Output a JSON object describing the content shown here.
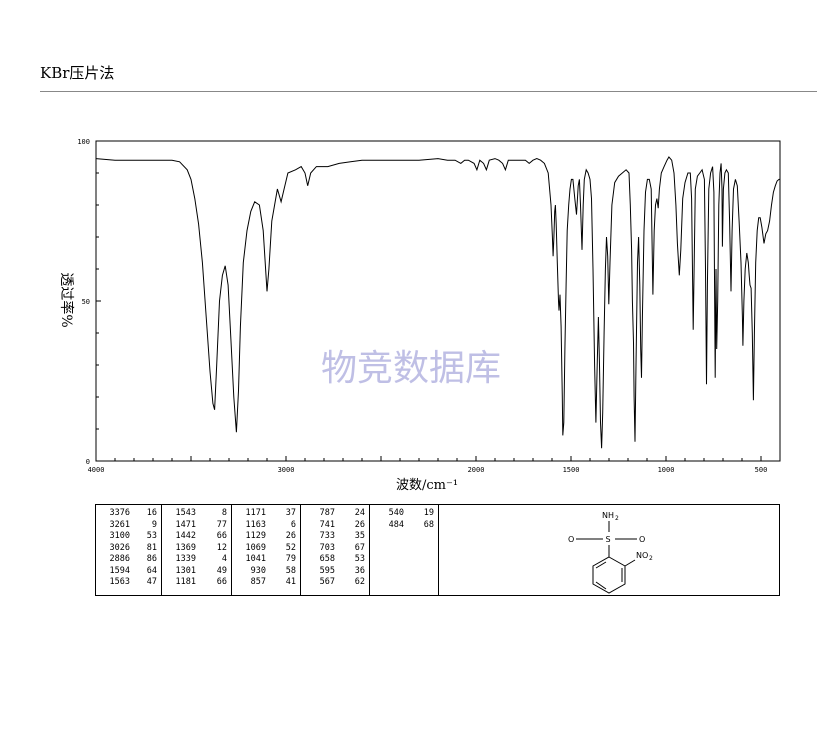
{
  "header": {
    "method": "KBr压片法"
  },
  "watermark": "物竞数据库",
  "chart_data": {
    "type": "line",
    "ylabel": "透过率%",
    "xlabel": "波数/cm⁻¹",
    "xlim": [
      4000,
      400
    ],
    "ylim": [
      0,
      100
    ],
    "x_ticks": [
      "4000",
      "3000",
      "2000",
      "1500",
      "1000",
      "500"
    ],
    "y_ticks": [
      "100",
      "50",
      "0"
    ],
    "series": [
      {
        "points": [
          [
            4000,
            94.5
          ],
          [
            3900,
            94
          ],
          [
            3800,
            94
          ],
          [
            3700,
            94
          ],
          [
            3600,
            94
          ],
          [
            3560,
            93.5
          ],
          [
            3520,
            91
          ],
          [
            3500,
            88
          ],
          [
            3480,
            82
          ],
          [
            3460,
            74
          ],
          [
            3440,
            62
          ],
          [
            3420,
            45
          ],
          [
            3400,
            28
          ],
          [
            3385,
            18
          ],
          [
            3376,
            16
          ],
          [
            3365,
            30
          ],
          [
            3350,
            50
          ],
          [
            3335,
            58
          ],
          [
            3320,
            61
          ],
          [
            3305,
            55
          ],
          [
            3290,
            38
          ],
          [
            3275,
            20
          ],
          [
            3261,
            9
          ],
          [
            3250,
            22
          ],
          [
            3240,
            42
          ],
          [
            3225,
            62
          ],
          [
            3205,
            72
          ],
          [
            3185,
            78
          ],
          [
            3165,
            81
          ],
          [
            3140,
            80
          ],
          [
            3120,
            72
          ],
          [
            3100,
            53
          ],
          [
            3090,
            60
          ],
          [
            3075,
            75
          ],
          [
            3060,
            80
          ],
          [
            3045,
            85
          ],
          [
            3026,
            81
          ],
          [
            3010,
            85
          ],
          [
            2990,
            90
          ],
          [
            2950,
            91
          ],
          [
            2920,
            92
          ],
          [
            2900,
            90
          ],
          [
            2886,
            86
          ],
          [
            2870,
            90
          ],
          [
            2840,
            92
          ],
          [
            2780,
            92
          ],
          [
            2720,
            93
          ],
          [
            2660,
            93.5
          ],
          [
            2600,
            94
          ],
          [
            2540,
            94
          ],
          [
            2480,
            94
          ],
          [
            2400,
            94
          ],
          [
            2300,
            94
          ],
          [
            2200,
            94.5
          ],
          [
            2150,
            94
          ],
          [
            2110,
            94
          ],
          [
            2080,
            93
          ],
          [
            2060,
            94
          ],
          [
            2040,
            94
          ],
          [
            2010,
            93
          ],
          [
            1995,
            91
          ],
          [
            1980,
            94
          ],
          [
            1960,
            93
          ],
          [
            1945,
            91
          ],
          [
            1930,
            94
          ],
          [
            1900,
            94.5
          ],
          [
            1880,
            94
          ],
          [
            1860,
            93
          ],
          [
            1845,
            91
          ],
          [
            1830,
            94
          ],
          [
            1800,
            94
          ],
          [
            1760,
            94
          ],
          [
            1740,
            94
          ],
          [
            1720,
            93
          ],
          [
            1700,
            94
          ],
          [
            1680,
            94.5
          ],
          [
            1660,
            94
          ],
          [
            1640,
            93
          ],
          [
            1620,
            90
          ],
          [
            1605,
            80
          ],
          [
            1598,
            70
          ],
          [
            1594,
            64
          ],
          [
            1590,
            70
          ],
          [
            1586,
            78
          ],
          [
            1582,
            80
          ],
          [
            1578,
            74
          ],
          [
            1572,
            62
          ],
          [
            1566,
            50
          ],
          [
            1563,
            47
          ],
          [
            1558,
            52
          ],
          [
            1552,
            42
          ],
          [
            1546,
            20
          ],
          [
            1543,
            8
          ],
          [
            1538,
            12
          ],
          [
            1532,
            35
          ],
          [
            1526,
            55
          ],
          [
            1520,
            72
          ],
          [
            1512,
            80
          ],
          [
            1505,
            85
          ],
          [
            1498,
            88
          ],
          [
            1490,
            88
          ],
          [
            1480,
            82
          ],
          [
            1471,
            77
          ],
          [
            1462,
            86
          ],
          [
            1456,
            88
          ],
          [
            1450,
            80
          ],
          [
            1442,
            66
          ],
          [
            1436,
            80
          ],
          [
            1430,
            88
          ],
          [
            1420,
            91
          ],
          [
            1410,
            90
          ],
          [
            1400,
            88
          ],
          [
            1392,
            82
          ],
          [
            1384,
            60
          ],
          [
            1376,
            30
          ],
          [
            1369,
            12
          ],
          [
            1362,
            30
          ],
          [
            1356,
            45
          ],
          [
            1350,
            30
          ],
          [
            1345,
            12
          ],
          [
            1339,
            4
          ],
          [
            1333,
            15
          ],
          [
            1326,
            40
          ],
          [
            1319,
            60
          ],
          [
            1313,
            70
          ],
          [
            1307,
            64
          ],
          [
            1301,
            49
          ],
          [
            1295,
            62
          ],
          [
            1285,
            80
          ],
          [
            1270,
            87
          ],
          [
            1250,
            89
          ],
          [
            1230,
            90
          ],
          [
            1210,
            91
          ],
          [
            1195,
            90
          ],
          [
            1188,
            80
          ],
          [
            1181,
            66
          ],
          [
            1177,
            50
          ],
          [
            1171,
            37
          ],
          [
            1168,
            20
          ],
          [
            1163,
            6
          ],
          [
            1158,
            30
          ],
          [
            1150,
            62
          ],
          [
            1144,
            70
          ],
          [
            1138,
            55
          ],
          [
            1133,
            35
          ],
          [
            1129,
            26
          ],
          [
            1124,
            45
          ],
          [
            1116,
            72
          ],
          [
            1108,
            84
          ],
          [
            1098,
            88
          ],
          [
            1088,
            88
          ],
          [
            1078,
            85
          ],
          [
            1069,
            52
          ],
          [
            1062,
            72
          ],
          [
            1055,
            80
          ],
          [
            1048,
            82
          ],
          [
            1041,
            79
          ],
          [
            1035,
            85
          ],
          [
            1025,
            90
          ],
          [
            1010,
            92
          ],
          [
            995,
            94
          ],
          [
            985,
            95
          ],
          [
            970,
            94
          ],
          [
            958,
            90
          ],
          [
            948,
            80
          ],
          [
            940,
            68
          ],
          [
            930,
            58
          ],
          [
            922,
            66
          ],
          [
            912,
            82
          ],
          [
            900,
            87
          ],
          [
            885,
            90
          ],
          [
            872,
            90
          ],
          [
            865,
            82
          ],
          [
            857,
            41
          ],
          [
            852,
            60
          ],
          [
            846,
            85
          ],
          [
            835,
            89
          ],
          [
            822,
            90
          ],
          [
            810,
            91
          ],
          [
            798,
            88
          ],
          [
            792,
            60
          ],
          [
            787,
            24
          ],
          [
            782,
            55
          ],
          [
            775,
            85
          ],
          [
            765,
            90
          ],
          [
            755,
            92
          ],
          [
            748,
            84
          ],
          [
            741,
            26
          ],
          [
            737,
            60
          ],
          [
            733,
            35
          ],
          [
            728,
            50
          ],
          [
            722,
            80
          ],
          [
            716,
            90
          ],
          [
            710,
            93
          ],
          [
            705,
            85
          ],
          [
            703,
            67
          ],
          [
            698,
            85
          ],
          [
            690,
            90
          ],
          [
            682,
            91
          ],
          [
            672,
            90
          ],
          [
            665,
            75
          ],
          [
            658,
            53
          ],
          [
            652,
            72
          ],
          [
            645,
            85
          ],
          [
            635,
            88
          ],
          [
            625,
            86
          ],
          [
            615,
            75
          ],
          [
            605,
            62
          ],
          [
            598,
            45
          ],
          [
            595,
            36
          ],
          [
            590,
            50
          ],
          [
            583,
            60
          ],
          [
            575,
            65
          ],
          [
            567,
            62
          ],
          [
            562,
            58
          ],
          [
            558,
            55
          ],
          [
            552,
            54
          ],
          [
            546,
            40
          ],
          [
            540,
            19
          ],
          [
            535,
            40
          ],
          [
            528,
            62
          ],
          [
            520,
            72
          ],
          [
            512,
            76
          ],
          [
            504,
            76
          ],
          [
            495,
            73
          ],
          [
            484,
            68
          ],
          [
            475,
            71
          ],
          [
            465,
            72
          ],
          [
            455,
            75
          ],
          [
            445,
            80
          ],
          [
            435,
            84
          ],
          [
            425,
            86
          ],
          [
            415,
            87.5
          ],
          [
            405,
            88
          ],
          [
            400,
            88
          ]
        ]
      }
    ]
  },
  "peak_table": [
    [
      [
        "3376",
        "16"
      ],
      [
        "3261",
        "9"
      ],
      [
        "3100",
        "53"
      ],
      [
        "3026",
        "81"
      ],
      [
        "2886",
        "86"
      ],
      [
        "1594",
        "64"
      ],
      [
        "1563",
        "47"
      ]
    ],
    [
      [
        "1543",
        "8"
      ],
      [
        "1471",
        "77"
      ],
      [
        "1442",
        "66"
      ],
      [
        "1369",
        "12"
      ],
      [
        "1339",
        "4"
      ],
      [
        "1301",
        "49"
      ],
      [
        "1181",
        "66"
      ]
    ],
    [
      [
        "1171",
        "37"
      ],
      [
        "1163",
        "6"
      ],
      [
        "1129",
        "26"
      ],
      [
        "1069",
        "52"
      ],
      [
        "1041",
        "79"
      ],
      [
        "930",
        "58"
      ],
      [
        "857",
        "41"
      ]
    ],
    [
      [
        "787",
        "24"
      ],
      [
        "741",
        "26"
      ],
      [
        "733",
        "35"
      ],
      [
        "703",
        "67"
      ],
      [
        "658",
        "53"
      ],
      [
        "595",
        "36"
      ],
      [
        "567",
        "62"
      ]
    ],
    [
      [
        "540",
        "19"
      ],
      [
        "484",
        "68"
      ]
    ]
  ],
  "structure": {
    "labels": {
      "nh2": "NH",
      "nh2_sub": "2",
      "s": "S",
      "o_left": "O",
      "o_right": "O",
      "no2": "NO",
      "no2_sub": "2"
    }
  }
}
